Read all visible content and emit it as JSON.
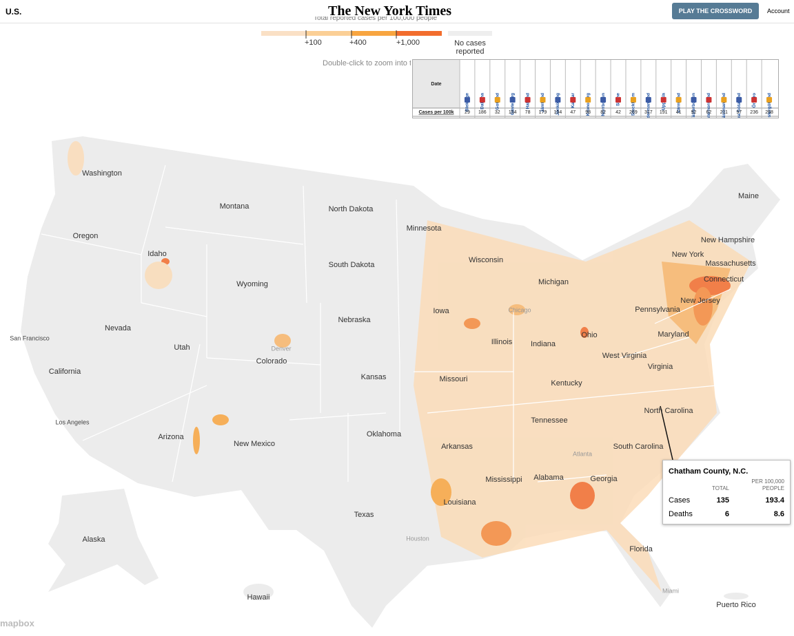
{
  "header": {
    "section": "U.S.",
    "logo": "The New York Times",
    "button": "PLAY THE CROSSWORD",
    "account": "Account"
  },
  "legend": {
    "title": "Total reported cases per 100,000 people",
    "ticks": [
      "+100",
      "+400",
      "+1,000"
    ],
    "no_data": "No cases reported"
  },
  "zoom_hint": "Double-click to zoom into t",
  "table": {
    "header": "Date",
    "row_label": "Cases per 100k",
    "columns": [
      "Blekinge",
      "Dalarna",
      "Gotland",
      "Gävleborg",
      "Halland",
      "Jämtland",
      "Jönköping",
      "Kalmar",
      "Kronoberg",
      "Norrbotten",
      "Skåne",
      "Stockholm",
      "Södermanland",
      "Uppsala",
      "Värmland",
      "Västerbotten",
      "Västernorrland",
      "Västmanland",
      "Västra Götaland",
      "Örebro",
      "Östergötland"
    ],
    "values": [
      "29",
      "186",
      "32",
      "154",
      "78",
      "179",
      "154",
      "47",
      "98",
      "82",
      "42",
      "269",
      "317",
      "191",
      "41",
      "92",
      "62",
      "211",
      "97",
      "236",
      "268"
    ]
  },
  "map": {
    "states": [
      "Washington",
      "Montana",
      "North Dakota",
      "Oregon",
      "Idaho",
      "South Dakota",
      "Minnesota",
      "Wyoming",
      "Wisconsin",
      "Michigan",
      "Maine",
      "New Hampshire",
      "New York",
      "Massachusetts",
      "Connecticut",
      "New Jersey",
      "Pennsylvania",
      "Iowa",
      "Nebraska",
      "Nevada",
      "Utah",
      "Colorado",
      "Illinois",
      "Indiana",
      "Ohio",
      "California",
      "Kansas",
      "Missouri",
      "West Virginia",
      "Maryland",
      "Virginia",
      "Kentucky",
      "North Carolina",
      "Tennessee",
      "Oklahoma",
      "Arizona",
      "New Mexico",
      "Arkansas",
      "South Carolina",
      "Mississippi",
      "Alabama",
      "Georgia",
      "Louisiana",
      "Texas",
      "Florida",
      "Alaska",
      "Hawaii",
      "Puerto Rico"
    ],
    "cities": [
      "San Francisco",
      "Los Angeles",
      "Denver",
      "Chicago",
      "Atlanta",
      "Houston",
      "Miami"
    ],
    "attribution": "mapbox"
  },
  "tooltip": {
    "title": "Chatham County, N.C.",
    "col_total": "TOTAL",
    "col_per": "PER 100,000 PEOPLE",
    "rows": [
      {
        "label": "Cases",
        "total": "135",
        "per": "193.4"
      },
      {
        "label": "Deaths",
        "total": "6",
        "per": "8.6"
      }
    ]
  }
}
